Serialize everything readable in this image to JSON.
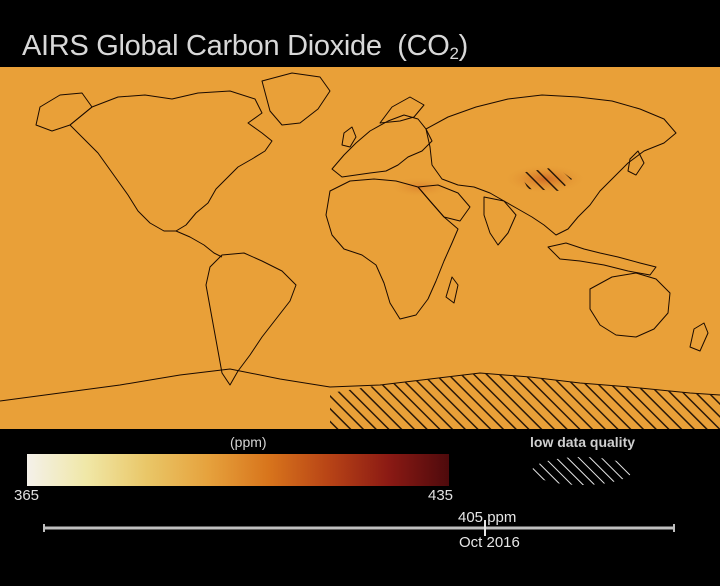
{
  "title": {
    "main": "AIRS Global Carbon Dioxide",
    "formula_prefix": "(CO",
    "formula_sub": "2",
    "formula_suffix": ")"
  },
  "colorbar": {
    "unit_label": "(ppm)",
    "min_label": "365",
    "max_label": "435",
    "min": 365,
    "max": 435,
    "stops": [
      "#f4f1ea",
      "#f0e7a6",
      "#e9c667",
      "#e6a23d",
      "#d8751c",
      "#b84416",
      "#8b1a14",
      "#4e0a0c"
    ]
  },
  "legend": {
    "low_quality_label": "low data quality"
  },
  "timeline": {
    "value_label": "405 ppm",
    "date_label": "Oct 2016",
    "position_fraction": 0.7
  },
  "map_colors": {
    "ocean_fill": "#e9a038",
    "land_fill": "#e49a33",
    "hotspot_fill": "#d57026",
    "outline": "#1a0a00",
    "hatch": "#2a1808"
  }
}
